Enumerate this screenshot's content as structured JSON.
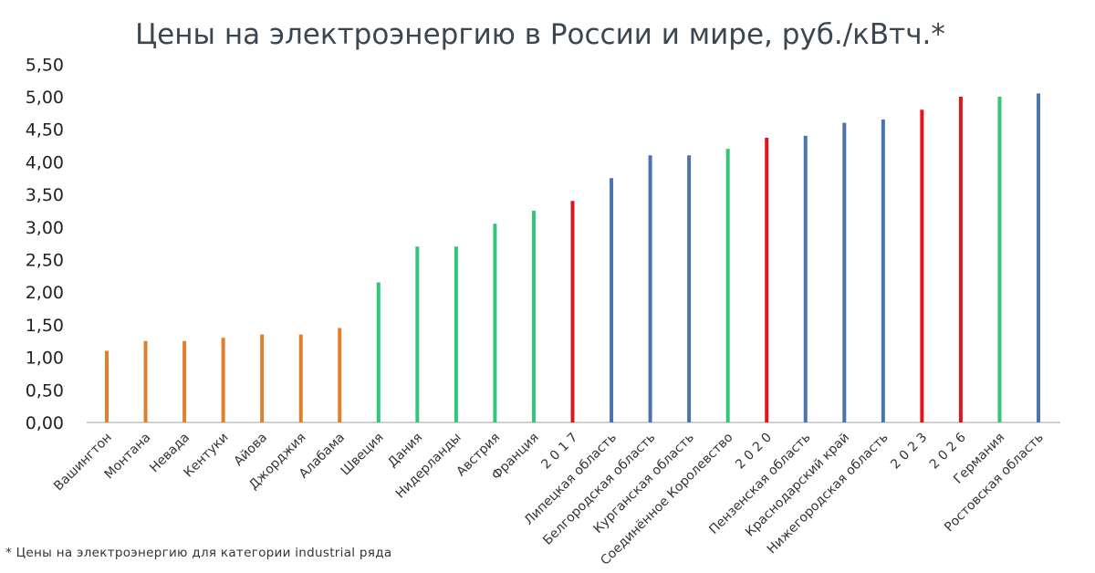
{
  "chart_data": {
    "type": "bar",
    "title": "Цены на электроэнергию в России и мире, руб./кВтч.*",
    "xlabel": "",
    "ylabel": "",
    "ylim": [
      0,
      5.5
    ],
    "yticks": [
      "0,00",
      "0,50",
      "1,00",
      "1,50",
      "2,00",
      "2,50",
      "3,00",
      "3,50",
      "4,00",
      "4,50",
      "5,00",
      "5,50"
    ],
    "grid": false,
    "legend": "none",
    "colors": {
      "us": "#e07f2e",
      "world": "#2fc77a",
      "year": "#e0161c",
      "russia": "#4a74ad"
    },
    "categories": [
      "Вашингтон",
      "Монтана",
      "Невада",
      "Кентуки",
      "Айова",
      "Джорджия",
      "Алабама",
      "Швеция",
      "Дания",
      "Нидерланды",
      "Австрия",
      "Франция",
      "2 0 1 7",
      "Липецкая область",
      "Белгородская область",
      "Курганская область",
      "Соединённое Королевство",
      "2 0 2 0",
      "Пензенская область",
      "Краснодарский край",
      "Нижегородская область",
      "2 0 2 3",
      "2 0 2 6",
      "Германия",
      "Ростовская область"
    ],
    "groups": [
      "us",
      "us",
      "us",
      "us",
      "us",
      "us",
      "us",
      "world",
      "world",
      "world",
      "world",
      "world",
      "year",
      "russia",
      "russia",
      "russia",
      "world",
      "year",
      "russia",
      "russia",
      "russia",
      "year",
      "year",
      "world",
      "russia"
    ],
    "values": [
      1.1,
      1.25,
      1.25,
      1.3,
      1.35,
      1.35,
      1.45,
      2.15,
      2.7,
      2.7,
      3.05,
      3.25,
      3.4,
      3.75,
      4.1,
      4.1,
      4.2,
      4.37,
      4.4,
      4.6,
      4.65,
      4.8,
      5.0,
      5.0,
      5.05
    ]
  },
  "footnote": "* Цены на электроэнергию для категории industrial ряда"
}
